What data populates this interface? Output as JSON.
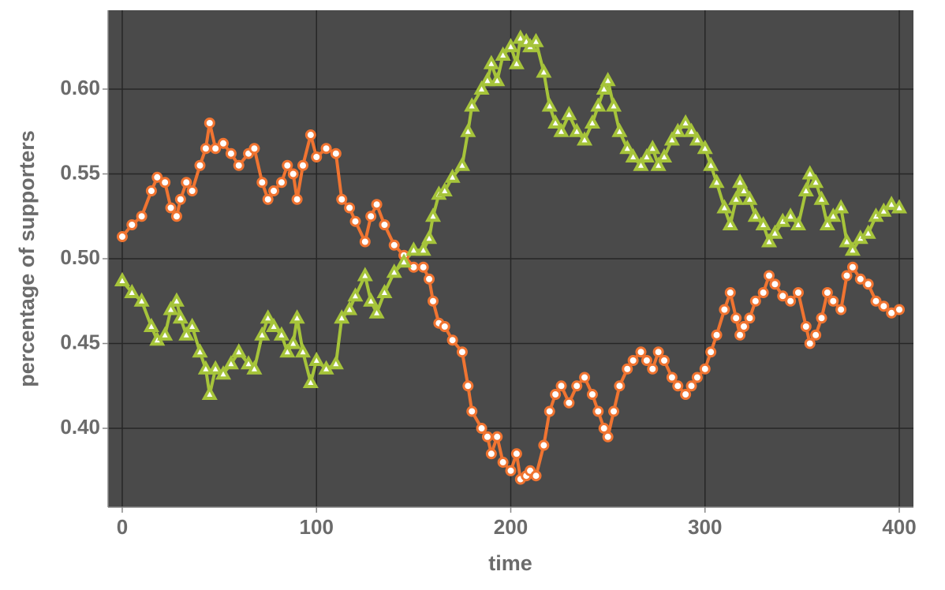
{
  "chart_data": {
    "type": "line",
    "xlabel": "time",
    "ylabel": "percentage of supporters",
    "x": [
      0,
      5,
      10,
      15,
      18,
      22,
      25,
      28,
      30,
      33,
      36,
      40,
      43,
      45,
      48,
      52,
      56,
      60,
      65,
      68,
      72,
      75,
      78,
      82,
      85,
      88,
      90,
      93,
      97,
      100,
      105,
      110,
      113,
      117,
      120,
      125,
      128,
      131,
      135,
      140,
      145,
      150,
      155,
      158,
      160,
      163,
      166,
      170,
      175,
      178,
      180,
      185,
      188,
      190,
      193,
      196,
      200,
      203,
      205,
      208,
      210,
      213,
      217,
      220,
      223,
      226,
      230,
      234,
      238,
      242,
      245,
      248,
      250,
      253,
      256,
      260,
      263,
      267,
      270,
      273,
      276,
      279,
      283,
      286,
      290,
      293,
      296,
      300,
      303,
      306,
      310,
      313,
      316,
      318,
      320,
      323,
      326,
      330,
      333,
      336,
      340,
      344,
      348,
      352,
      354,
      357,
      360,
      363,
      366,
      370,
      373,
      376,
      380,
      384,
      388,
      392,
      396,
      400
    ],
    "series": [
      {
        "color": "#f07431",
        "marker": "circle",
        "values": [
          0.513,
          0.52,
          0.525,
          0.54,
          0.548,
          0.545,
          0.53,
          0.525,
          0.535,
          0.545,
          0.54,
          0.555,
          0.565,
          0.58,
          0.565,
          0.568,
          0.562,
          0.555,
          0.562,
          0.565,
          0.545,
          0.535,
          0.54,
          0.545,
          0.555,
          0.55,
          0.535,
          0.555,
          0.573,
          0.56,
          0.565,
          0.562,
          0.535,
          0.53,
          0.522,
          0.51,
          0.525,
          0.532,
          0.52,
          0.508,
          0.502,
          0.495,
          0.495,
          0.488,
          0.475,
          0.462,
          0.46,
          0.452,
          0.445,
          0.425,
          0.41,
          0.4,
          0.395,
          0.385,
          0.395,
          0.38,
          0.375,
          0.385,
          0.37,
          0.372,
          0.375,
          0.372,
          0.39,
          0.41,
          0.42,
          0.425,
          0.415,
          0.425,
          0.43,
          0.42,
          0.41,
          0.4,
          0.395,
          0.41,
          0.425,
          0.435,
          0.44,
          0.445,
          0.44,
          0.435,
          0.445,
          0.44,
          0.43,
          0.425,
          0.42,
          0.425,
          0.43,
          0.435,
          0.445,
          0.455,
          0.47,
          0.48,
          0.465,
          0.455,
          0.46,
          0.465,
          0.475,
          0.48,
          0.49,
          0.485,
          0.478,
          0.475,
          0.48,
          0.46,
          0.45,
          0.455,
          0.465,
          0.48,
          0.475,
          0.47,
          0.49,
          0.495,
          0.488,
          0.485,
          0.475,
          0.472,
          0.468,
          0.47
        ]
      },
      {
        "color": "#a6c43a",
        "marker": "triangle",
        "values": [
          0.487,
          0.48,
          0.475,
          0.46,
          0.452,
          0.455,
          0.47,
          0.475,
          0.465,
          0.455,
          0.46,
          0.445,
          0.435,
          0.42,
          0.435,
          0.432,
          0.438,
          0.445,
          0.438,
          0.435,
          0.455,
          0.465,
          0.46,
          0.455,
          0.445,
          0.45,
          0.465,
          0.445,
          0.427,
          0.44,
          0.435,
          0.438,
          0.465,
          0.47,
          0.478,
          0.49,
          0.475,
          0.468,
          0.48,
          0.492,
          0.498,
          0.505,
          0.505,
          0.512,
          0.525,
          0.538,
          0.54,
          0.548,
          0.555,
          0.575,
          0.59,
          0.6,
          0.605,
          0.615,
          0.605,
          0.62,
          0.625,
          0.615,
          0.63,
          0.628,
          0.625,
          0.628,
          0.61,
          0.59,
          0.58,
          0.575,
          0.585,
          0.575,
          0.57,
          0.58,
          0.59,
          0.6,
          0.605,
          0.59,
          0.575,
          0.565,
          0.56,
          0.555,
          0.56,
          0.565,
          0.555,
          0.56,
          0.57,
          0.575,
          0.58,
          0.575,
          0.57,
          0.565,
          0.555,
          0.545,
          0.53,
          0.52,
          0.535,
          0.545,
          0.54,
          0.535,
          0.525,
          0.52,
          0.51,
          0.515,
          0.522,
          0.525,
          0.52,
          0.54,
          0.55,
          0.545,
          0.535,
          0.52,
          0.525,
          0.53,
          0.51,
          0.505,
          0.512,
          0.515,
          0.525,
          0.528,
          0.532,
          0.53
        ]
      }
    ],
    "xlim": [
      -7.3,
      407.3
    ],
    "ylim": [
      0.3535,
      0.6465
    ],
    "xticks": [
      0,
      100,
      200,
      300,
      400
    ],
    "yticks": [
      {
        "value": 0.4,
        "label": "0.40"
      },
      {
        "value": 0.45,
        "label": "0.45"
      },
      {
        "value": 0.5,
        "label": "0.50"
      },
      {
        "value": 0.55,
        "label": "0.55"
      },
      {
        "value": 0.6,
        "label": "0.60"
      }
    ],
    "grid": true,
    "background": "#4a4a4a"
  }
}
